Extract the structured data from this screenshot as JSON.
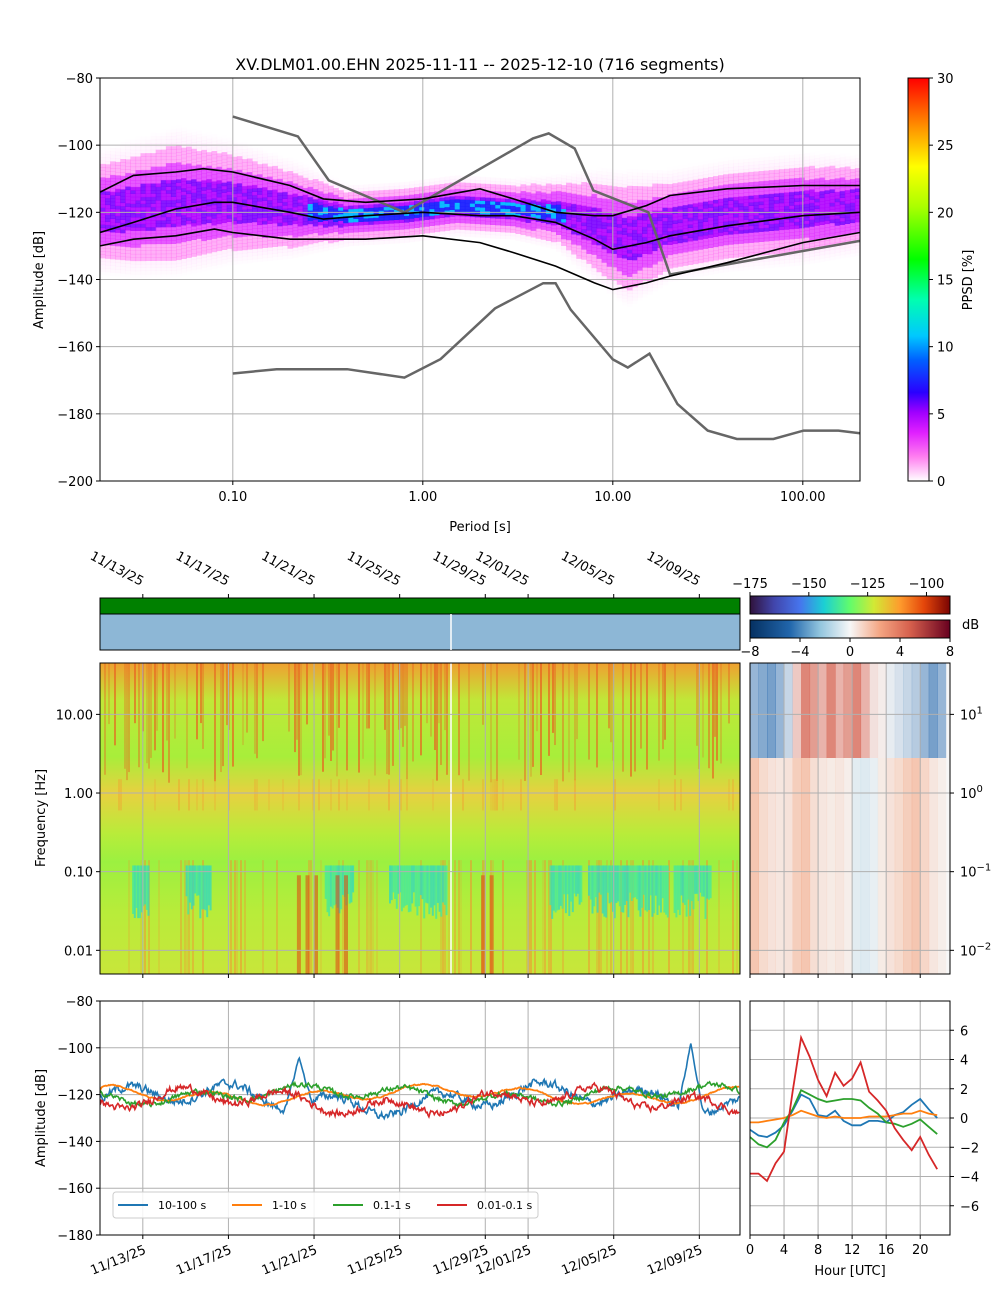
{
  "figure_title": "XV.DLM01.00.EHN   2025-11-11 -- 2025-12-10  (716 segments)",
  "colors": {
    "series_10_100": "#1f77b4",
    "series_1_10": "#ff7f0e",
    "series_01_1": "#2ca02c",
    "series_001_01": "#d62728",
    "model_curves": "#666666",
    "percentile_curves": "#000000",
    "data_availability": "#008000",
    "gap_panel": "#8db7d6"
  },
  "chart_data": [
    {
      "type": "heatmap",
      "panel": "ppsd",
      "xlabel": "Period [s]",
      "ylabel": "Amplitude [dB]",
      "xscale": "log",
      "xlim": [
        0.02,
        200
      ],
      "ylim": [
        -200,
        -80
      ],
      "x_tick_labels": [
        "0.10",
        "1.00",
        "10.00",
        "100.00"
      ],
      "x_ticks": [
        0.1,
        1,
        10,
        100
      ],
      "y_ticks": [
        -200,
        -180,
        -160,
        -140,
        -120,
        -100,
        -80
      ],
      "colorbar": {
        "label": "PPSD [%]",
        "range": [
          0,
          30
        ],
        "ticks": [
          0,
          5,
          10,
          15,
          20,
          25,
          30
        ]
      },
      "grid": true,
      "density_band": {
        "period": [
          0.02,
          0.03,
          0.05,
          0.1,
          0.2,
          0.4,
          0.8,
          1.5,
          3,
          5,
          8,
          12,
          20,
          40,
          100,
          200
        ],
        "center": [
          -120,
          -119,
          -117,
          -117,
          -119,
          -121,
          -120,
          -118,
          -119,
          -120,
          -124,
          -128,
          -124,
          -121,
          -119,
          -118
        ],
        "half_width": [
          10,
          11,
          12,
          10,
          8,
          5,
          5,
          5,
          5,
          6,
          9,
          11,
          9,
          9,
          9,
          8
        ]
      },
      "percentile_curves": [
        {
          "period": [
            0.02,
            0.03,
            0.05,
            0.07,
            0.1,
            0.2,
            0.3,
            0.5,
            1,
            2,
            3,
            5,
            8,
            10,
            15,
            20,
            40,
            100,
            200
          ],
          "values": [
            -114,
            -109,
            -108,
            -107,
            -108,
            -112,
            -116,
            -117,
            -116,
            -113,
            -116,
            -120,
            -121,
            -121,
            -118,
            -115,
            -113,
            -112,
            -112
          ]
        },
        {
          "period": [
            0.02,
            0.03,
            0.05,
            0.08,
            0.1,
            0.2,
            0.3,
            0.5,
            1,
            2,
            3,
            5,
            8,
            10,
            15,
            20,
            40,
            100,
            200
          ],
          "values": [
            -126,
            -123,
            -119,
            -117,
            -117,
            -120,
            -122,
            -121,
            -120,
            -121,
            -121,
            -123,
            -128,
            -131,
            -129,
            -127,
            -124,
            -121,
            -120
          ]
        },
        {
          "period": [
            0.02,
            0.03,
            0.05,
            0.08,
            0.1,
            0.2,
            0.3,
            0.5,
            1,
            2,
            3,
            5,
            8,
            10,
            15,
            20,
            40,
            100,
            200
          ],
          "values": [
            -130,
            -128,
            -127,
            -125,
            -126,
            -128,
            -128,
            -128,
            -127,
            -129,
            -132,
            -136,
            -141,
            -143,
            -141,
            -139,
            -135,
            -129,
            -126
          ]
        }
      ],
      "model_curves": [
        {
          "period": [
            0.1,
            0.22,
            0.32,
            0.8,
            3.8,
            4.6,
            6.3,
            7.9,
            15.4,
            20,
            200
          ],
          "values": [
            -91.5,
            -97.4,
            -110.5,
            -120.0,
            -98.0,
            -96.5,
            -101.0,
            -113.5,
            -120.0,
            -138.5,
            -128.5
          ]
        },
        {
          "period": [
            0.1,
            0.17,
            0.4,
            0.8,
            1.24,
            2.4,
            4.3,
            5.0,
            6.0,
            10,
            12,
            15.6,
            21.9,
            31.6,
            45,
            70,
            101,
            154,
            200
          ],
          "values": [
            -168.0,
            -166.7,
            -166.7,
            -169.2,
            -163.7,
            -148.6,
            -141.1,
            -141.1,
            -149.0,
            -163.8,
            -166.2,
            -162.1,
            -177.1,
            -185.0,
            -187.5,
            -187.5,
            -185.0,
            -185.0,
            -185.8
          ]
        }
      ]
    },
    {
      "type": "heatmap",
      "panel": "spectrogram",
      "ylabel": "Frequency [Hz]",
      "yscale": "log",
      "ylim": [
        0.005,
        45
      ],
      "y_tick_labels": [
        "0.01",
        "0.10",
        "1.00",
        "10.00"
      ],
      "y_ticks": [
        0.01,
        0.1,
        1,
        10
      ],
      "x_tick_labels": [
        "11/13/25",
        "11/17/25",
        "11/21/25",
        "11/25/25",
        "11/29/25",
        "12/01/25",
        "12/05/25",
        "12/09/25"
      ],
      "x_tick_days": [
        2,
        6,
        10,
        14,
        18,
        20,
        24,
        28
      ],
      "x_range_days": [
        0,
        29.9
      ],
      "colorbar": {
        "range": [
          -175,
          -90
        ],
        "ticks": [
          -175,
          -150,
          -125,
          -100
        ]
      },
      "grid": true
    },
    {
      "type": "heatmap",
      "panel": "diurnal_anomaly",
      "y_tick_labels": [
        "10^-2",
        "10^-1",
        "10^0",
        "10^1"
      ],
      "colorbar": {
        "label": "dB",
        "range": [
          -8,
          8
        ],
        "ticks": [
          -8,
          -4,
          0,
          4,
          8
        ]
      },
      "grid": true
    },
    {
      "type": "line",
      "panel": "band_timeseries",
      "ylabel": "Amplitude [dB]",
      "ylim": [
        -180,
        -80
      ],
      "y_ticks": [
        -180,
        -160,
        -140,
        -120,
        -100,
        -80
      ],
      "x_tick_labels": [
        "11/13/25",
        "11/17/25",
        "11/21/25",
        "11/25/25",
        "11/29/25",
        "12/01/25",
        "12/05/25",
        "12/09/25"
      ],
      "x_tick_days": [
        2,
        6,
        10,
        14,
        18,
        20,
        24,
        28
      ],
      "x_range_days": [
        0,
        29.9
      ],
      "legend_position": "lower-left",
      "grid": true,
      "series": [
        {
          "name": "10-100 s",
          "mean": -122,
          "spread": 8,
          "events": [
            {
              "day": 9.3,
              "value": -104
            },
            {
              "day": 27.6,
              "value": -98
            }
          ]
        },
        {
          "name": "1-10 s",
          "mean": -120,
          "spread": 5,
          "events": []
        },
        {
          "name": "0.1-1 s",
          "mean": -120,
          "spread": 5,
          "events": []
        },
        {
          "name": "0.01-0.1 s",
          "mean": -123,
          "spread": 7,
          "events": []
        }
      ]
    },
    {
      "type": "line",
      "panel": "diurnal_band",
      "xlabel": "Hour [UTC]",
      "xlim": [
        0,
        23.5
      ],
      "ylim": [
        -8,
        8
      ],
      "x_ticks": [
        0,
        4,
        8,
        12,
        16,
        20
      ],
      "y_ticks": [
        -6,
        -4,
        -2,
        0,
        2,
        4,
        6
      ],
      "grid": true,
      "hours": [
        0,
        1,
        2,
        3,
        4,
        5,
        6,
        7,
        8,
        9,
        10,
        11,
        12,
        13,
        14,
        15,
        16,
        17,
        18,
        19,
        20,
        21,
        22
      ],
      "series": [
        {
          "name": "10-100 s",
          "values": [
            -0.8,
            -1.2,
            -1.3,
            -1.0,
            -0.5,
            0.5,
            1.6,
            1.3,
            0.2,
            0.1,
            0.5,
            -0.2,
            -0.5,
            -0.5,
            -0.2,
            -0.2,
            -0.3,
            0.2,
            0.4,
            0.9,
            1.3,
            0.6,
            0.0
          ]
        },
        {
          "name": "1-10 s",
          "values": [
            -0.3,
            -0.3,
            -0.2,
            -0.1,
            0.0,
            0.2,
            0.5,
            0.3,
            0.1,
            0.0,
            0.1,
            0.0,
            0.0,
            0.0,
            0.1,
            0.1,
            0.1,
            0.2,
            0.3,
            0.3,
            0.5,
            0.3,
            0.2
          ]
        },
        {
          "name": "0.1-1 s",
          "values": [
            -1.3,
            -1.8,
            -2.0,
            -1.5,
            -0.3,
            0.6,
            1.9,
            1.6,
            1.3,
            1.1,
            1.2,
            1.3,
            1.3,
            1.2,
            0.7,
            0.3,
            -0.3,
            -0.4,
            -0.6,
            -0.4,
            -0.1,
            -0.6,
            -1.1
          ]
        },
        {
          "name": "0.01-0.1 s",
          "values": [
            -3.8,
            -3.8,
            -4.3,
            -3.1,
            -2.3,
            1.8,
            5.5,
            4.2,
            2.6,
            1.5,
            3.1,
            2.2,
            2.7,
            3.8,
            1.8,
            1.2,
            0.5,
            -0.7,
            -1.5,
            -2.2,
            -1.3,
            -2.5,
            -3.5
          ]
        }
      ]
    }
  ]
}
